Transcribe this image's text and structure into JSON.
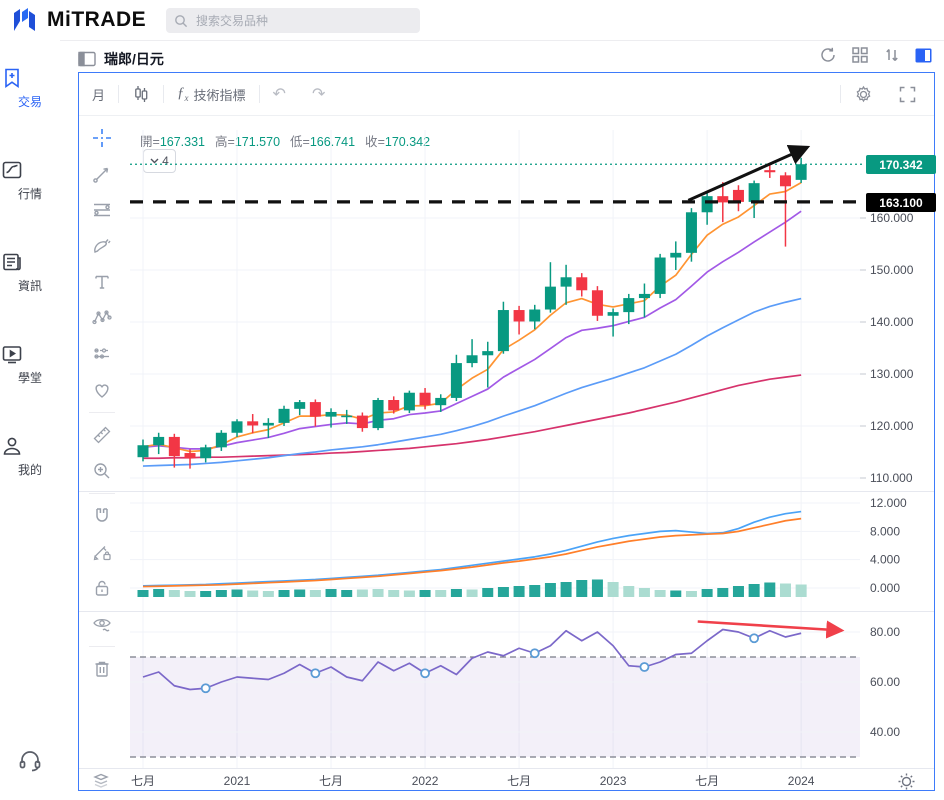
{
  "topbar": {
    "logo": "MiTRADE",
    "search_placeholder": "搜索交易品种"
  },
  "sidebar": {
    "items": [
      {
        "label": "交易",
        "active": true
      },
      {
        "label": "行情",
        "active": false
      },
      {
        "label": "資訊",
        "active": false
      },
      {
        "label": "學堂",
        "active": false
      },
      {
        "label": "我的",
        "active": false
      }
    ]
  },
  "header": {
    "title": "瑞郎/日元"
  },
  "toolbar": {
    "timeframe": "月",
    "indicators": "技術指標"
  },
  "legend": {
    "open_label": "開",
    "open": "167.331",
    "high_label": "高",
    "high": "171.570",
    "low_label": "低",
    "low": "166.741",
    "close_label": "收",
    "close": "170.342",
    "chip": "4"
  },
  "price_scale": {
    "current": "170.342",
    "alert": "163.100"
  },
  "chart_data": {
    "type": "candlestick",
    "symbol": "CHF/JPY 瑞郎/日元",
    "timeframe": "月",
    "months": [
      "2020-07",
      "2020-08",
      "2020-09",
      "2020-10",
      "2020-11",
      "2020-12",
      "2021-01",
      "2021-02",
      "2021-03",
      "2021-04",
      "2021-05",
      "2021-06",
      "2021-07",
      "2021-08",
      "2021-09",
      "2021-10",
      "2021-11",
      "2021-12",
      "2022-01",
      "2022-02",
      "2022-03",
      "2022-04",
      "2022-05",
      "2022-06",
      "2022-07",
      "2022-08",
      "2022-09",
      "2022-10",
      "2022-11",
      "2022-12",
      "2023-01",
      "2023-02",
      "2023-03",
      "2023-04",
      "2023-05",
      "2023-06",
      "2023-07",
      "2023-08",
      "2023-09",
      "2023-10",
      "2023-11",
      "2023-12",
      "2024-01"
    ],
    "candles_ohlc": [
      [
        114.0,
        117.4,
        113.2,
        116.3
      ],
      [
        116.3,
        118.7,
        114.6,
        117.9
      ],
      [
        117.9,
        118.5,
        112.0,
        114.2
      ],
      [
        114.8,
        115.5,
        111.8,
        113.8
      ],
      [
        113.8,
        116.4,
        113.0,
        115.9
      ],
      [
        115.9,
        119.2,
        115.2,
        118.7
      ],
      [
        118.7,
        121.3,
        117.9,
        120.9
      ],
      [
        120.9,
        122.3,
        118.6,
        120.1
      ],
      [
        120.1,
        121.5,
        117.7,
        120.6
      ],
      [
        120.6,
        123.9,
        120.0,
        123.3
      ],
      [
        123.3,
        125.0,
        122.1,
        124.6
      ],
      [
        124.6,
        125.1,
        119.9,
        121.8
      ],
      [
        121.8,
        123.4,
        119.7,
        122.7
      ],
      [
        121.7,
        123.1,
        120.4,
        122.0
      ],
      [
        122.0,
        122.6,
        118.9,
        119.6
      ],
      [
        119.6,
        125.4,
        119.2,
        125.0
      ],
      [
        125.0,
        125.7,
        122.4,
        123.0
      ],
      [
        123.0,
        126.8,
        122.5,
        126.4
      ],
      [
        126.4,
        127.3,
        123.2,
        124.0
      ],
      [
        124.0,
        126.1,
        122.7,
        125.4
      ],
      [
        125.4,
        133.7,
        124.8,
        132.1
      ],
      [
        132.1,
        136.7,
        131.3,
        133.6
      ],
      [
        133.6,
        136.2,
        127.4,
        134.4
      ],
      [
        134.4,
        143.9,
        133.9,
        142.3
      ],
      [
        142.3,
        143.1,
        137.6,
        140.1
      ],
      [
        140.1,
        143.3,
        138.6,
        142.4
      ],
      [
        142.4,
        151.5,
        141.8,
        146.8
      ],
      [
        146.8,
        151.0,
        143.3,
        148.6
      ],
      [
        148.6,
        149.4,
        144.9,
        146.1
      ],
      [
        146.1,
        146.9,
        140.2,
        141.2
      ],
      [
        141.2,
        142.6,
        137.2,
        141.9
      ],
      [
        141.9,
        145.4,
        139.6,
        144.6
      ],
      [
        144.6,
        147.4,
        140.9,
        145.4
      ],
      [
        145.4,
        153.1,
        144.6,
        152.4
      ],
      [
        152.4,
        155.5,
        150.0,
        153.3
      ],
      [
        153.3,
        161.9,
        151.6,
        161.1
      ],
      [
        161.1,
        165.0,
        158.7,
        164.2
      ],
      [
        164.2,
        166.9,
        159.2,
        163.0
      ],
      [
        165.4,
        166.3,
        161.3,
        163.1
      ],
      [
        163.1,
        167.2,
        160.0,
        166.7
      ],
      [
        169.2,
        170.2,
        167.7,
        168.8
      ],
      [
        168.2,
        168.8,
        154.5,
        166.1
      ],
      [
        167.331,
        171.57,
        166.741,
        170.342
      ]
    ],
    "ma_series": [
      {
        "name": "ma-fast",
        "color": "#ff9432",
        "values": [
          116.0,
          116.5,
          115.8,
          115.1,
          115.3,
          116.4,
          117.9,
          118.7,
          119.3,
          120.6,
          121.9,
          121.9,
          122.2,
          122.1,
          121.3,
          122.5,
          122.7,
          123.9,
          123.9,
          124.4,
          127.0,
          129.2,
          130.9,
          134.7,
          136.5,
          138.5,
          141.3,
          143.7,
          144.5,
          143.4,
          142.9,
          143.5,
          144.1,
          146.9,
          149.0,
          153.0,
          156.7,
          158.8,
          160.2,
          162.4,
          164.6,
          165.1,
          166.8
        ]
      },
      {
        "name": "ma-mid",
        "color": "#a259e6",
        "values": [
          115.9,
          116.2,
          115.9,
          115.6,
          115.6,
          116.1,
          116.8,
          117.3,
          117.8,
          118.6,
          119.5,
          119.9,
          120.3,
          120.6,
          120.4,
          121.1,
          121.4,
          122.2,
          122.5,
          122.9,
          124.3,
          125.7,
          127.1,
          129.4,
          131.1,
          132.8,
          134.9,
          137.0,
          138.4,
          138.8,
          139.3,
          140.1,
          140.9,
          142.7,
          144.3,
          146.9,
          149.6,
          151.6,
          153.4,
          155.4,
          157.3,
          159.2,
          161.3
        ]
      },
      {
        "name": "ma-slow",
        "color": "#5b9cf8",
        "values": [
          112.3,
          112.4,
          112.5,
          112.6,
          112.8,
          113.0,
          113.3,
          113.6,
          113.9,
          114.3,
          114.7,
          115.0,
          115.4,
          115.7,
          116.0,
          116.4,
          116.9,
          117.4,
          117.9,
          118.4,
          119.1,
          119.9,
          120.8,
          121.9,
          122.9,
          123.9,
          125.1,
          126.3,
          127.4,
          128.3,
          129.2,
          130.2,
          131.2,
          132.5,
          133.8,
          135.5,
          137.3,
          138.9,
          140.4,
          141.9,
          143.0,
          143.8,
          144.5
        ]
      },
      {
        "name": "ma-slowest",
        "color": "#d6336c",
        "values": [
          113.8,
          113.8,
          113.9,
          113.9,
          114.0,
          114.0,
          114.1,
          114.2,
          114.3,
          114.4,
          114.5,
          114.6,
          114.8,
          114.9,
          115.1,
          115.3,
          115.5,
          115.7,
          116.0,
          116.3,
          116.6,
          117.0,
          117.4,
          117.9,
          118.4,
          118.9,
          119.5,
          120.1,
          120.7,
          121.3,
          121.9,
          122.5,
          123.2,
          123.9,
          124.6,
          125.4,
          126.2,
          127.0,
          127.8,
          128.4,
          129.0,
          129.4,
          129.8
        ]
      }
    ],
    "indicator_panel": {
      "histogram": {
        "values": [
          0.5,
          0.6,
          0.5,
          0.4,
          0.4,
          0.5,
          0.55,
          0.45,
          0.4,
          0.5,
          0.55,
          0.5,
          0.6,
          0.5,
          0.55,
          0.6,
          0.5,
          0.45,
          0.5,
          0.5,
          0.6,
          0.55,
          0.7,
          0.8,
          0.9,
          1.0,
          1.2,
          1.3,
          1.5,
          1.55,
          1.3,
          0.9,
          0.7,
          0.5,
          0.45,
          0.4,
          0.6,
          0.7,
          0.9,
          1.1,
          1.25,
          1.15,
          1.05
        ],
        "shades": [
          "d",
          "d",
          "l",
          "l",
          "d",
          "d",
          "d",
          "l",
          "l",
          "d",
          "d",
          "l",
          "d",
          "d",
          "l",
          "l",
          "l",
          "l",
          "d",
          "l",
          "d",
          "l",
          "d",
          "d",
          "d",
          "d",
          "d",
          "d",
          "d",
          "d",
          "l",
          "l",
          "l",
          "l",
          "d",
          "l",
          "d",
          "d",
          "d",
          "d",
          "d",
          "l",
          "l"
        ],
        "color_dark": "#26a69a",
        "color_light": "#abdcd1"
      },
      "lines": [
        {
          "name": "ind-blue",
          "color": "#4aa3f7",
          "values": [
            0.3,
            0.35,
            0.4,
            0.45,
            0.5,
            0.6,
            0.7,
            0.8,
            0.9,
            1.0,
            1.1,
            1.2,
            1.35,
            1.5,
            1.65,
            1.8,
            2.0,
            2.2,
            2.4,
            2.6,
            2.9,
            3.2,
            3.5,
            3.8,
            4.1,
            4.4,
            4.8,
            5.3,
            5.9,
            6.5,
            7.0,
            7.4,
            7.7,
            8.0,
            8.1,
            7.9,
            7.7,
            7.8,
            8.4,
            9.3,
            10.0,
            10.5,
            10.8
          ]
        },
        {
          "name": "ind-orange",
          "color": "#ff7f2a",
          "values": [
            0.2,
            0.25,
            0.3,
            0.35,
            0.4,
            0.45,
            0.55,
            0.65,
            0.75,
            0.85,
            0.95,
            1.05,
            1.2,
            1.35,
            1.5,
            1.65,
            1.85,
            2.05,
            2.25,
            2.45,
            2.7,
            2.95,
            3.25,
            3.55,
            3.8,
            4.1,
            4.4,
            4.8,
            5.3,
            5.8,
            6.2,
            6.6,
            6.9,
            7.2,
            7.4,
            7.5,
            7.6,
            7.7,
            8.0,
            8.5,
            9.0,
            9.5,
            9.8
          ]
        }
      ],
      "ticks": [
        {
          "v": 12,
          "label": "12.000"
        },
        {
          "v": 8,
          "label": "8.000"
        },
        {
          "v": 4,
          "label": "4.000"
        },
        {
          "v": 0,
          "label": "0.000"
        }
      ]
    },
    "rsi_panel": {
      "color": "#7b68c9",
      "values": [
        62,
        64,
        58.5,
        57,
        57.5,
        60,
        62,
        61.5,
        61,
        63.5,
        67,
        63.5,
        66,
        62,
        60.5,
        68,
        64.5,
        67.5,
        63.5,
        66.5,
        63,
        69.5,
        72,
        70.5,
        73.5,
        71.5,
        74.5,
        80.5,
        76.5,
        80,
        74.5,
        66.5,
        66,
        68,
        71,
        71.5,
        76.5,
        81,
        80,
        77.5,
        80.5,
        78,
        79.5
      ],
      "marker_indices": [
        4,
        11,
        18,
        25,
        32,
        39
      ],
      "band": {
        "upper": 70,
        "lower": 30,
        "fill": "#7e57c2",
        "fill_opacity": 0.09,
        "dash_color": "#787b86"
      },
      "ticks": [
        {
          "v": 80,
          "label": "80.00"
        },
        {
          "v": 60,
          "label": "60.00"
        },
        {
          "v": 40,
          "label": "40.00"
        }
      ]
    },
    "main_ticks": [
      {
        "p": 160,
        "label": "160.000"
      },
      {
        "p": 150,
        "label": "150.000"
      },
      {
        "p": 140,
        "label": "140.000"
      },
      {
        "p": 130,
        "label": "130.000"
      },
      {
        "p": 120,
        "label": "120.000"
      },
      {
        "p": 110,
        "label": "110.000"
      }
    ],
    "x_axis": {
      "ticks": [
        {
          "i": 0,
          "label": "七月"
        },
        {
          "i": 6,
          "label": "2021"
        },
        {
          "i": 12,
          "label": "七月"
        },
        {
          "i": 18,
          "label": "2022"
        },
        {
          "i": 24,
          "label": "七月"
        },
        {
          "i": 30,
          "label": "2023"
        },
        {
          "i": 36,
          "label": "七月"
        },
        {
          "i": 42,
          "label": "2024"
        }
      ]
    },
    "price_lines": {
      "current": {
        "price": 170.342,
        "style": "dotted",
        "color": "#089981"
      },
      "alert": {
        "price": 163.1,
        "style": "dashed",
        "color": "#111111"
      }
    },
    "annotations": {
      "black_arrow": {
        "from": [
          34.8,
          163.4
        ],
        "to": [
          42.4,
          173.6
        ],
        "color": "#111111"
      },
      "red_arrow": {
        "from": [
          35.4,
          84.2
        ],
        "to": [
          44.6,
          80.6
        ],
        "color": "#f0404a"
      }
    },
    "colors": {
      "up": "#089981",
      "down": "#f23645",
      "grid": "#f1f3f8",
      "axis_text": "#4a4e59"
    }
  }
}
